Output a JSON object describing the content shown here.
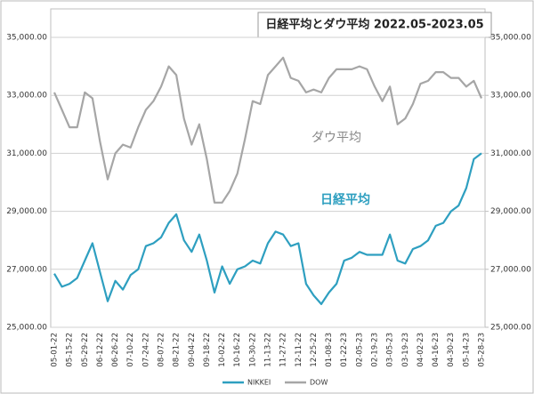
{
  "chart_data": {
    "type": "line",
    "title": "日経平均とダウ平均 2022.05-2023.05",
    "annotations": [
      "ダウ平均",
      "日経平均"
    ],
    "categories": [
      "05-01-22",
      null,
      "05-15-22",
      null,
      "05-29-22",
      null,
      "06-12-22",
      null,
      "06-26-22",
      null,
      "07-10-22",
      null,
      "07-24-22",
      null,
      "08-07-22",
      null,
      "08-21-22",
      null,
      "09-04-22",
      null,
      "09-18-22",
      null,
      "10-02-22",
      null,
      "10-16-22",
      null,
      "10-30-22",
      null,
      "11-13-22",
      null,
      "11-27-22",
      null,
      "12-11-22",
      null,
      "12-25-22",
      null,
      "01-08-23",
      null,
      "01-22-23",
      null,
      "02-05-23",
      null,
      "02-19-23",
      null,
      "03-05-23",
      null,
      "03-19-23",
      null,
      "04-02-23",
      null,
      "04-16-23",
      null,
      "04-30-23",
      null,
      "05-14-23",
      null,
      "05-28-23"
    ],
    "series": [
      {
        "name": "NIKKEI",
        "color": "#2e9fc0",
        "values": [
          26850,
          26400,
          26500,
          26700,
          27300,
          27900,
          26900,
          25900,
          26600,
          26300,
          26800,
          27000,
          27800,
          27900,
          28100,
          28600,
          28900,
          28000,
          27600,
          28200,
          27300,
          26200,
          27100,
          26500,
          27000,
          27100,
          27300,
          27200,
          27900,
          28300,
          28200,
          27800,
          27900,
          26500,
          26100,
          25800,
          26200,
          26500,
          27300,
          27400,
          27600,
          27500,
          27500,
          27500,
          28200,
          27300,
          27200,
          27700,
          27800,
          28000,
          28500,
          28600,
          29000,
          29200,
          29800,
          30800,
          31000
        ]
      },
      {
        "name": "DOW",
        "color": "#a6a6a6",
        "axis": "y2",
        "values": [
          33100,
          32500,
          31900,
          31900,
          33100,
          32900,
          31400,
          30100,
          31000,
          31300,
          31200,
          31900,
          32500,
          32800,
          33300,
          34000,
          33700,
          32200,
          31300,
          32000,
          30800,
          29300,
          29300,
          29700,
          30300,
          31500,
          32800,
          32700,
          33700,
          34000,
          34300,
          33600,
          33500,
          33100,
          33200,
          33100,
          33600,
          33900,
          33900,
          33900,
          34000,
          33900,
          33300,
          32800,
          33300,
          32000,
          32200,
          32700,
          33400,
          33500,
          33800,
          33800,
          33600,
          33600,
          33300,
          33500,
          32900
        ]
      }
    ],
    "ylim": [
      25000,
      35000
    ],
    "yticks": [
      {
        "value": 25000,
        "label": "25,000.00"
      },
      {
        "value": 27000,
        "label": "27,000.00"
      },
      {
        "value": 29000,
        "label": "29,000.00"
      },
      {
        "value": 31000,
        "label": "31,000.00"
      },
      {
        "value": 33000,
        "label": "33,000.00"
      },
      {
        "value": 35000,
        "label": "35,000.00"
      }
    ],
    "y2lim": [
      25000,
      35000
    ],
    "y2ticks": [
      {
        "value": 25000,
        "label": "25,000.00"
      },
      {
        "value": 27000,
        "label": "27,000.00"
      },
      {
        "value": 29000,
        "label": "29,000.00"
      },
      {
        "value": 31000,
        "label": "31,000.00"
      },
      {
        "value": 33000,
        "label": "33,000.00"
      },
      {
        "value": 35000,
        "label": "35,000.00"
      }
    ],
    "grid": true,
    "legend": "bottom"
  }
}
